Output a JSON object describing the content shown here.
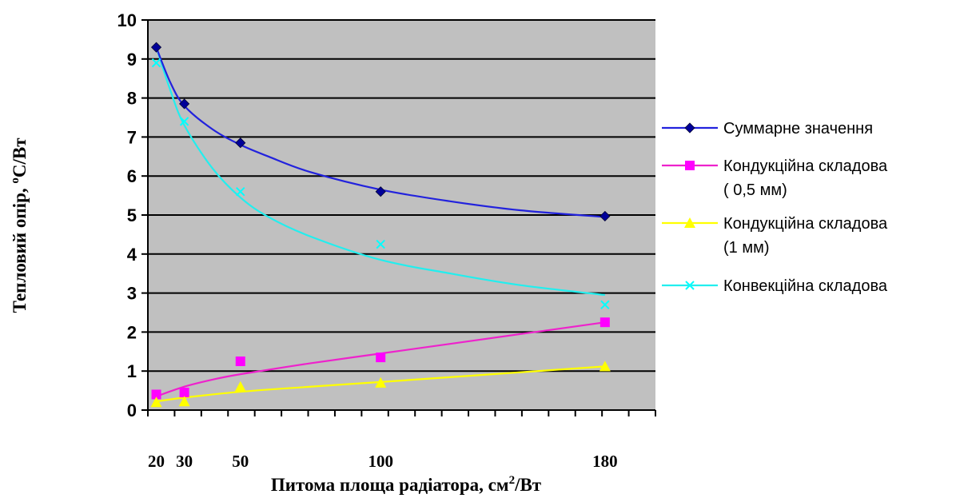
{
  "chart_data": {
    "type": "line",
    "xlabel": "Питома площа радіатора, см",
    "xlabel_sup": "2",
    "xlabel_tail": "/Вт",
    "ylabel": "Тепловий опір, ",
    "ylabel_sup": "о",
    "ylabel_tail": "С/Вт",
    "x_tick_labels": [
      "20",
      "30",
      "50",
      "100",
      "180"
    ],
    "x_tick_values": [
      20,
      30,
      50,
      100,
      180
    ],
    "y_ticks": [
      0,
      1,
      2,
      3,
      4,
      5,
      6,
      7,
      8,
      9,
      10
    ],
    "ylim": [
      0,
      10
    ],
    "xlim": [
      17,
      198
    ],
    "grid": "horizontal",
    "plot_background": "#c0c0c0",
    "legend_position": "right",
    "series": [
      {
        "name": "Суммарне значення",
        "color": "#000099",
        "line_color": "#2222dd",
        "marker": "diamond",
        "x": [
          20,
          30,
          50,
          100,
          180
        ],
        "y": [
          9.3,
          7.85,
          6.85,
          5.6,
          4.97
        ],
        "trend": [
          [
            20,
            9.3
          ],
          [
            25,
            8.4
          ],
          [
            30,
            7.8
          ],
          [
            40,
            7.2
          ],
          [
            50,
            6.8
          ],
          [
            60,
            6.5
          ],
          [
            75,
            6.1
          ],
          [
            100,
            5.65
          ],
          [
            125,
            5.35
          ],
          [
            150,
            5.12
          ],
          [
            180,
            4.95
          ]
        ]
      },
      {
        "name_lines": [
          "Кондукційна складова",
          "( 0,5 мм)"
        ],
        "color": "#ff00ff",
        "line_color": "#ee22cc",
        "marker": "square",
        "x": [
          20,
          30,
          50,
          100,
          180
        ],
        "y": [
          0.4,
          0.45,
          1.25,
          1.35,
          2.25
        ],
        "trend": [
          [
            20,
            0.35
          ],
          [
            30,
            0.6
          ],
          [
            40,
            0.78
          ],
          [
            50,
            0.92
          ],
          [
            75,
            1.2
          ],
          [
            100,
            1.45
          ],
          [
            125,
            1.7
          ],
          [
            150,
            1.95
          ],
          [
            180,
            2.25
          ]
        ]
      },
      {
        "name_lines": [
          "Кондукційна складова",
          "(1  мм)"
        ],
        "color": "#ffff00",
        "line_color": "#ffff00",
        "marker": "triangle",
        "x": [
          20,
          30,
          50,
          100,
          180
        ],
        "y": [
          0.2,
          0.22,
          0.6,
          0.7,
          1.12
        ],
        "trend": [
          [
            20,
            0.22
          ],
          [
            30,
            0.32
          ],
          [
            50,
            0.47
          ],
          [
            75,
            0.6
          ],
          [
            100,
            0.72
          ],
          [
            140,
            0.92
          ],
          [
            180,
            1.12
          ]
        ]
      },
      {
        "name": "Конвекційна складова",
        "color": "#00ffff",
        "line_color": "#22eeee",
        "marker": "x",
        "x": [
          20,
          30,
          50,
          100,
          180
        ],
        "y": [
          8.9,
          7.4,
          5.6,
          4.25,
          2.7
        ],
        "trend": [
          [
            20,
            9.3
          ],
          [
            25,
            8.2
          ],
          [
            30,
            7.3
          ],
          [
            40,
            6.2
          ],
          [
            50,
            5.45
          ],
          [
            60,
            4.95
          ],
          [
            75,
            4.45
          ],
          [
            100,
            3.85
          ],
          [
            125,
            3.5
          ],
          [
            150,
            3.2
          ],
          [
            180,
            2.95
          ]
        ]
      }
    ]
  }
}
